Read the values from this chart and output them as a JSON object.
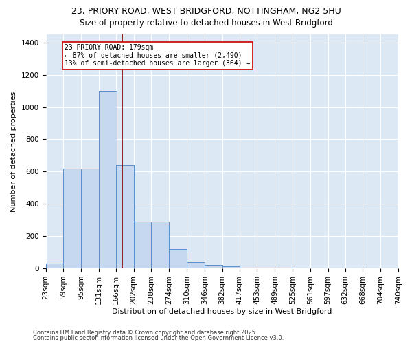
{
  "title1": "23, PRIORY ROAD, WEST BRIDGFORD, NOTTINGHAM, NG2 5HU",
  "title2": "Size of property relative to detached houses in West Bridgford",
  "xlabel": "Distribution of detached houses by size in West Bridgford",
  "ylabel": "Number of detached properties",
  "bin_edges": [
    23,
    59,
    95,
    131,
    166,
    202,
    238,
    274,
    310,
    346,
    382,
    417,
    453,
    489,
    525,
    561,
    597,
    632,
    668,
    704,
    740
  ],
  "bar_heights": [
    30,
    620,
    620,
    1100,
    640,
    290,
    290,
    120,
    40,
    20,
    15,
    5,
    5,
    3,
    2,
    1,
    1,
    1,
    1,
    0
  ],
  "bar_color": "#c5d8f0",
  "bar_edge_color": "#5b8fc9",
  "property_size": 179,
  "vline_color": "#8b0000",
  "annotation_text": "23 PRIORY ROAD: 179sqm\n← 87% of detached houses are smaller (2,490)\n13% of semi-detached houses are larger (364) →",
  "annotation_box_color": "#ffffff",
  "annotation_box_edge_color": "#cc0000",
  "footnote1": "Contains HM Land Registry data © Crown copyright and database right 2025.",
  "footnote2": "Contains public sector information licensed under the Open Government Licence v3.0.",
  "background_color": "#dde8f5",
  "ylim": [
    0,
    1450
  ],
  "yticks": [
    0,
    200,
    400,
    600,
    800,
    1000,
    1200,
    1400
  ],
  "title_fontsize": 9,
  "subtitle_fontsize": 8.5,
  "axis_label_fontsize": 8,
  "tick_fontsize": 7.5,
  "annotation_fontsize": 7,
  "footnote_fontsize": 6
}
